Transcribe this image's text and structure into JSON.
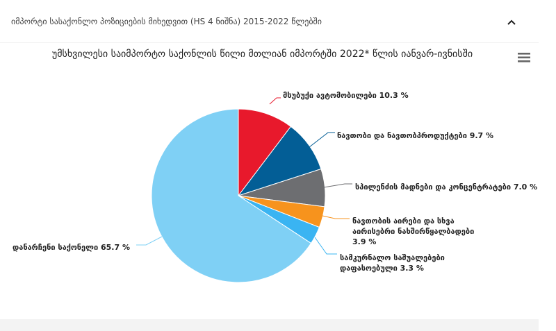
{
  "panel": {
    "title": "იმპორტი სასაქონლო პოზიციების მიხედვით (HS 4 ნიშნა) 2015-2022 წლებში",
    "toggle_icon": "chevron-up-icon"
  },
  "menu_icon": "hamburger-menu-icon",
  "chart_data": {
    "type": "pie",
    "title": "უმსხვილესი საიმპორტო საქონლის წილი მთლიან იმპორტში 2022* წლის იანვარ-ივნისში",
    "unit": "%",
    "slices": [
      {
        "label": "მსუბუქი ავტომობილები 10.3 %",
        "value": 10.3,
        "color": "#e8192c"
      },
      {
        "label": "ნავთობი და ნავთობპროდუქტები 9.7 %",
        "value": 9.7,
        "color": "#035e96"
      },
      {
        "label": "სპილენძის მადნები და კონცენტრატები 7.0 %",
        "value": 7.0,
        "color": "#6d6e71"
      },
      {
        "label": "ნავთობის აირები და სხვა აირისებრი ნახშირწყალბადები 3.9 %",
        "value": 3.9,
        "color": "#f7931d"
      },
      {
        "label": "სამკურნალო საშუალებები დაფასოებული 3.3 %",
        "value": 3.3,
        "color": "#3ab4f2"
      },
      {
        "label": "დანარჩენი საქონელი 65.7 %",
        "value": 65.7,
        "color": "#7fd0f5"
      }
    ]
  }
}
